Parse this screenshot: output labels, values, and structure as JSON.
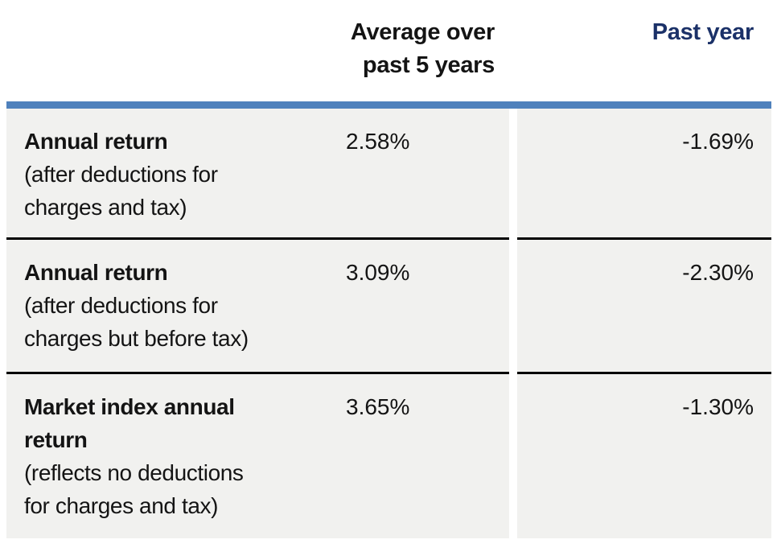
{
  "table": {
    "header": {
      "col_avg": {
        "label": "Average over past 5 years",
        "lines": [
          "Average over",
          "past 5 years"
        ]
      },
      "col_past_year": {
        "label": "Past year"
      }
    },
    "rows": [
      {
        "title_lines": [
          "Annual return"
        ],
        "subtitle_lines": [
          "(after deductions for",
          "charges and tax)"
        ],
        "avg_5yr": "2.58%",
        "past_year": "-1.69%"
      },
      {
        "title_lines": [
          "Annual return"
        ],
        "subtitle_lines": [
          "(after deductions for",
          "charges but before tax)"
        ],
        "avg_5yr": "3.09%",
        "past_year": "-2.30%"
      },
      {
        "title_lines": [
          "Market index annual",
          "return"
        ],
        "subtitle_lines": [
          "(reflects no deductions",
          "for charges and tax)"
        ],
        "avg_5yr": "3.65%",
        "past_year": "-1.30%"
      }
    ],
    "colors": {
      "accent_bar": "#4f81bc",
      "cell_background": "#f1f1ef",
      "past_year_header_text": "#1b3168",
      "row_separator": "#000000",
      "body_text": "#141414"
    }
  },
  "chart_data": {
    "type": "table",
    "columns": [
      "",
      "Average over past 5 years",
      "Past year"
    ],
    "rows": [
      [
        "Annual return (after deductions for charges and tax)",
        "2.58%",
        "-1.69%"
      ],
      [
        "Annual return (after deductions for charges but before tax)",
        "3.09%",
        "-2.30%"
      ],
      [
        "Market index annual return (reflects no deductions for charges and tax)",
        "3.65%",
        "-1.30%"
      ]
    ]
  }
}
